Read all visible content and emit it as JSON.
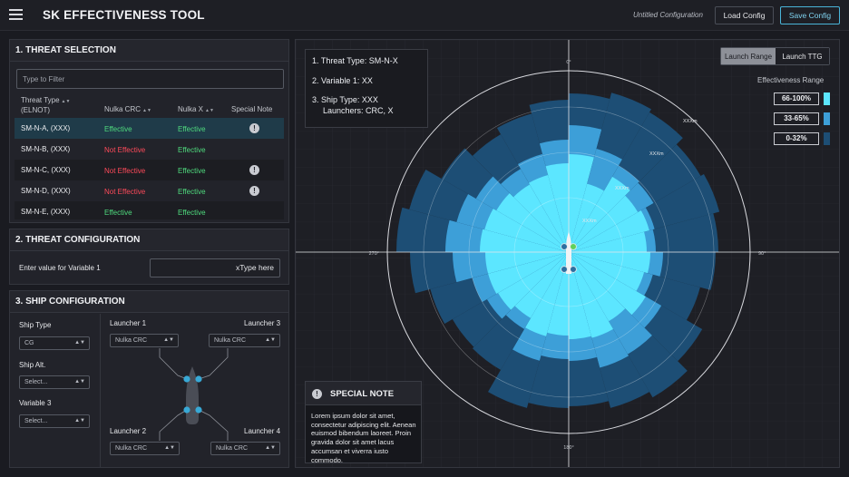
{
  "header": {
    "title": "SK EFFECTIVENESS TOOL",
    "config_name": "Untitled Configuration",
    "load_label": "Load Config",
    "save_label": "Save Config"
  },
  "threat_selection": {
    "title": "1. THREAT SELECTION",
    "filter_placeholder": "Type to Filter",
    "columns": [
      "Threat Type",
      "(ELNOT)",
      "Nulka CRC",
      "Nulka X",
      "Special Note"
    ],
    "rows": [
      {
        "name": "SM-N-A, (XXX)",
        "crc": "Effective",
        "x": "Effective",
        "note": true,
        "selected": true
      },
      {
        "name": "SM-N-B, (XXX)",
        "crc": "Not Effective",
        "x": "Effective",
        "note": false
      },
      {
        "name": "SM-N-C, (XXX)",
        "crc": "Not Effective",
        "x": "Effective",
        "note": true
      },
      {
        "name": "SM-N-D, (XXX)",
        "crc": "Not Effective",
        "x": "Effective",
        "note": true
      },
      {
        "name": "SM-N-E, (XXX)",
        "crc": "Effective",
        "x": "Effective",
        "note": false
      }
    ],
    "note_icon": "alert-icon"
  },
  "threat_config": {
    "title": "2. THREAT CONFIGURATION",
    "label": "Enter value for Variable 1",
    "input_value": "xType here"
  },
  "ship_config": {
    "title": "3. SHIP CONFIGURATION",
    "ship_type_label": "Ship Type",
    "ship_type_value": "CG",
    "ship_alt_label": "Ship Alt.",
    "ship_alt_value": "Select...",
    "variable3_label": "Variable 3",
    "variable3_value": "Select...",
    "launcher1_label": "Launcher 1",
    "launcher1_value": "Nulka CRC",
    "launcher2_label": "Launcher 2",
    "launcher2_value": "Nulka CRC",
    "launcher3_label": "Launcher 3",
    "launcher3_value": "Nulka CRC",
    "launcher4_label": "Launcher 4",
    "launcher4_value": "Nulka CRC"
  },
  "plot": {
    "info_line1": "1.  Threat Type: SM-N-X",
    "info_line2": "2.  Variable 1: XX",
    "info_line3": "3.  Ship Type: XXX",
    "info_line4": "Launchers: CRC, X",
    "tab_range": "Launch Range",
    "tab_ttg": "Launch TTG",
    "legend_title": "Effectiveness Range",
    "legend": [
      {
        "label": "66-100%",
        "color": "#5ce6ff"
      },
      {
        "label": "33-65%",
        "color": "#3d9fd8"
      },
      {
        "label": "0-32%",
        "color": "#1d4e75"
      }
    ],
    "bearing_labels": {
      "top": "0°",
      "right": "90°",
      "bottom": "180°",
      "left": "270°"
    },
    "ring_labels": [
      "XXXm",
      "XXXm",
      "XXXm",
      "XXXm"
    ],
    "note_title": "SPECIAL NOTE",
    "note_text": "Lorem ipsum dolor sit amet, consectetur adipiscing elit. Aenean euismod bibendum laoreet. Proin gravida dolor sit amet lacus accumsan et viverra iusto commodo."
  }
}
